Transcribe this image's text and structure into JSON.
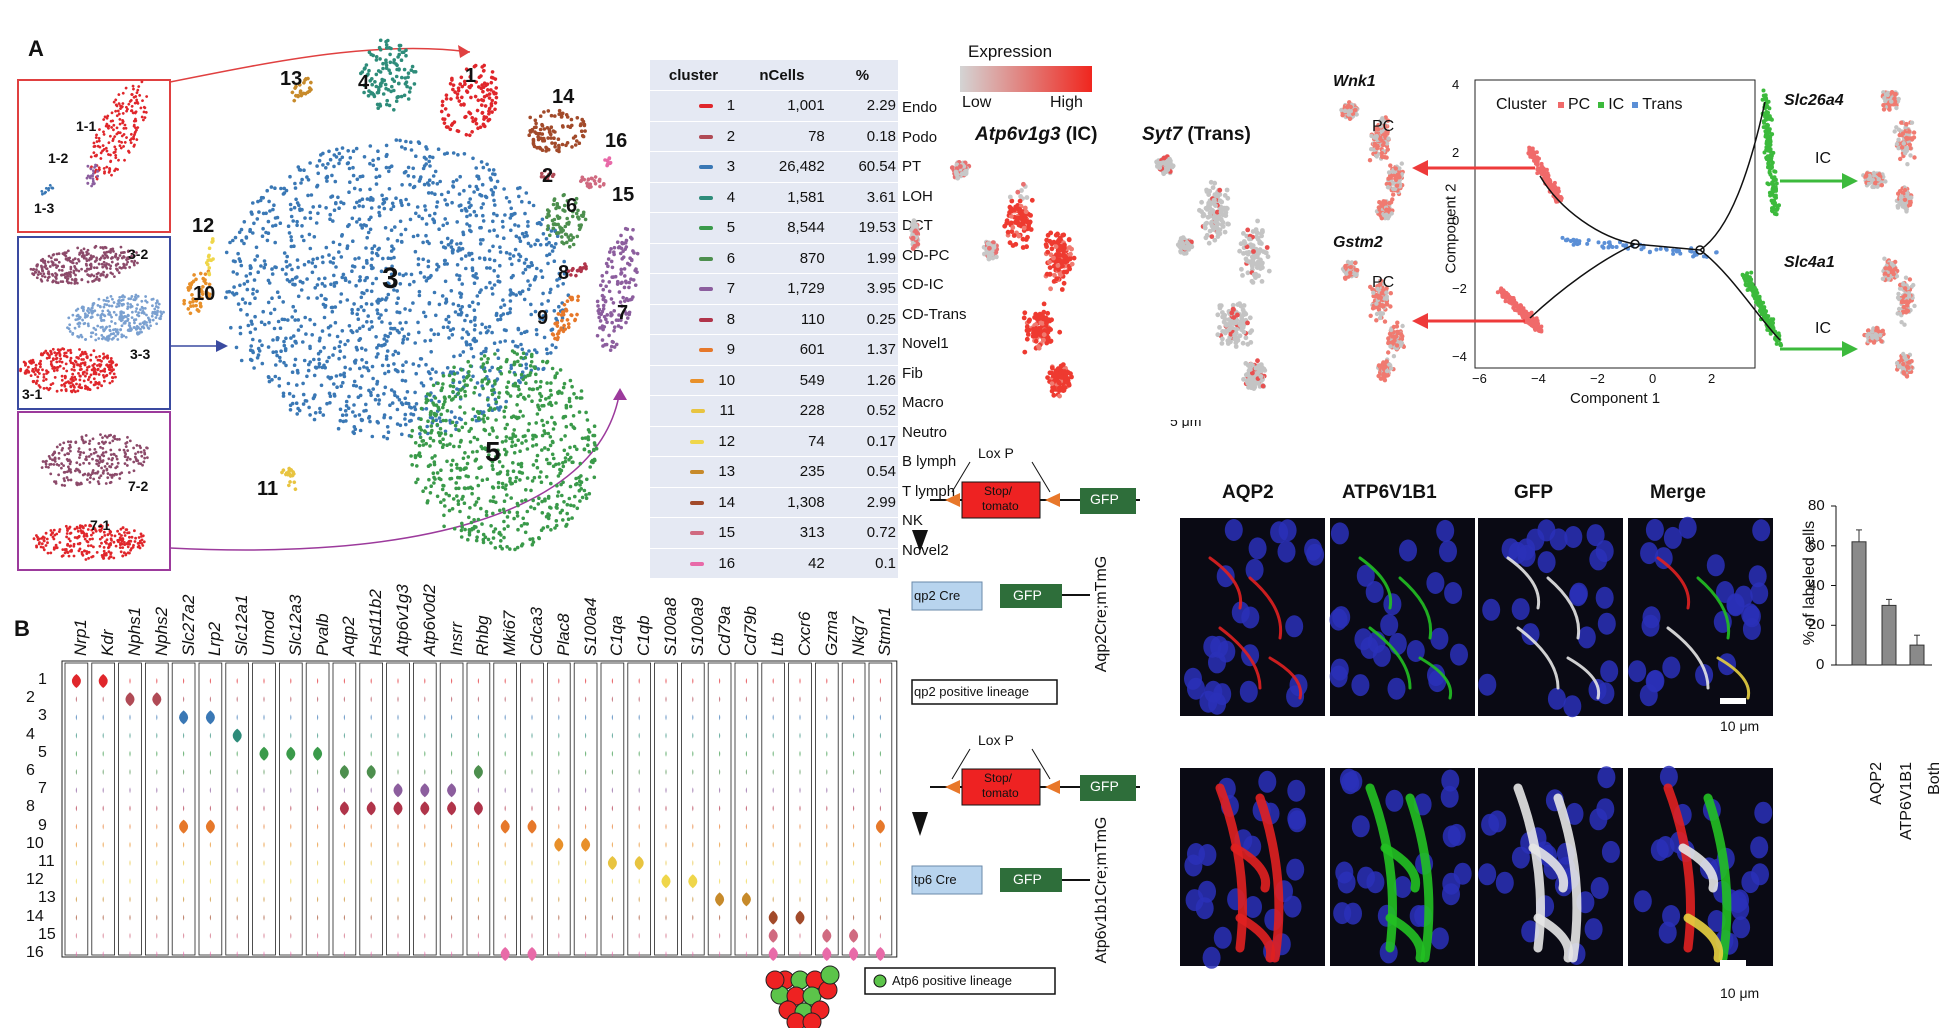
{
  "panels": {
    "a": "A",
    "b": "B"
  },
  "tsne_cluster_numbers": [
    "1",
    "2",
    "3",
    "4",
    "5",
    "6",
    "7",
    "8",
    "9",
    "10",
    "11",
    "12",
    "13",
    "14",
    "15",
    "16"
  ],
  "subcluster_labels": [
    "1-1",
    "1-2",
    "1-3",
    "3-2",
    "3-3",
    "3-1",
    "7-2",
    "7-1"
  ],
  "table": {
    "headers": [
      "cluster",
      "nCells",
      "%"
    ],
    "rows": [
      {
        "cluster": "1",
        "ncells": "1,001",
        "pct": "2.29",
        "type": "Endo",
        "color": "#e0262b"
      },
      {
        "cluster": "2",
        "ncells": "78",
        "pct": "0.18",
        "type": "Podo",
        "color": "#b04a55"
      },
      {
        "cluster": "3",
        "ncells": "26,482",
        "pct": "60.54",
        "type": "PT",
        "color": "#3a78b5"
      },
      {
        "cluster": "4",
        "ncells": "1,581",
        "pct": "3.61",
        "type": "LOH",
        "color": "#2e8c7a"
      },
      {
        "cluster": "5",
        "ncells": "8,544",
        "pct": "19.53",
        "type": "DCT",
        "color": "#3a9a4a"
      },
      {
        "cluster": "6",
        "ncells": "870",
        "pct": "1.99",
        "type": "CD-PC",
        "color": "#4d8f4e"
      },
      {
        "cluster": "7",
        "ncells": "1,729",
        "pct": "3.95",
        "type": "CD-IC",
        "color": "#8c5e9e"
      },
      {
        "cluster": "8",
        "ncells": "110",
        "pct": "0.25",
        "type": "CD-Trans",
        "color": "#b0344a"
      },
      {
        "cluster": "9",
        "ncells": "601",
        "pct": "1.37",
        "type": "Novel1",
        "color": "#e6782a"
      },
      {
        "cluster": "10",
        "ncells": "549",
        "pct": "1.26",
        "type": "Fib",
        "color": "#e8902a"
      },
      {
        "cluster": "11",
        "ncells": "228",
        "pct": "0.52",
        "type": "Macro",
        "color": "#e8c440"
      },
      {
        "cluster": "12",
        "ncells": "74",
        "pct": "0.17",
        "type": "Neutro",
        "color": "#efd64a"
      },
      {
        "cluster": "13",
        "ncells": "235",
        "pct": "0.54",
        "type": "B lymph",
        "color": "#c78a2a"
      },
      {
        "cluster": "14",
        "ncells": "1,308",
        "pct": "2.99",
        "type": "T lymph",
        "color": "#a24a2a"
      },
      {
        "cluster": "15",
        "ncells": "313",
        "pct": "0.72",
        "type": "NK",
        "color": "#d06a80"
      },
      {
        "cluster": "16",
        "ncells": "42",
        "pct": "0.1",
        "type": "Novel2",
        "color": "#e86aa8"
      }
    ]
  },
  "violin": {
    "genes": [
      "Nrp1",
      "Kdr",
      "Nphs1",
      "Nphs2",
      "Slc27a2",
      "Lrp2",
      "Slc12a1",
      "Umod",
      "Slc12a3",
      "Pvalb",
      "Aqp2",
      "Hsd11b2",
      "Atp6v1g3",
      "Atp6v0d2",
      "Insrr",
      "Rhbg",
      "Mki67",
      "Cdca3",
      "Plac8",
      "S100a4",
      "C1qa",
      "C1qb",
      "S100a8",
      "S100a9",
      "Cd79a",
      "Cd79b",
      "Ltb",
      "Cxcr6",
      "Gzma",
      "Nkg7",
      "Stmn1"
    ],
    "rows": [
      "1",
      "2",
      "3",
      "4",
      "5",
      "6",
      "7",
      "8",
      "9",
      "10",
      "11",
      "12",
      "13",
      "14",
      "15",
      "16"
    ]
  },
  "expression": {
    "legend_title": "Expression",
    "low": "Low",
    "high": "High",
    "gene1": "Atp6v1g3",
    "gene1_suffix": " (IC)",
    "gene2": "Syt7",
    "gene2_suffix": " (Trans)"
  },
  "trajectory": {
    "legend_title": "Cluster",
    "legend": [
      {
        "name": "PC",
        "color": "#f06a6a"
      },
      {
        "name": "IC",
        "color": "#3cba3c"
      },
      {
        "name": "Trans",
        "color": "#5b8fd6"
      }
    ],
    "xlabel": "Component 1",
    "ylabel": "Component 2",
    "xticks": [
      "−6",
      "−4",
      "−2",
      "0",
      "2"
    ],
    "yticks": [
      "4",
      "2",
      "0",
      "−2",
      "−4"
    ],
    "genes_left": [
      {
        "gene": "Wnk1",
        "tag": "PC"
      },
      {
        "gene": "Gstm2",
        "tag": "PC"
      }
    ],
    "genes_right": [
      {
        "gene": "Slc26a4",
        "tag": "IC"
      },
      {
        "gene": "Slc4a1",
        "tag": "IC"
      }
    ],
    "scale_fragment": "5 μm"
  },
  "lineage": {
    "loxp": "Lox P",
    "stop": "Stop/",
    "tomato": "tomato",
    "gfp": "GFP",
    "cre1": "qp2 Cre",
    "cre2": "tp6 Cre",
    "lineage1": "qp2 positive lineage",
    "lineage2": "Atp6 positive lineage"
  },
  "imaging": {
    "columns": [
      "AQP2",
      "ATP6V1B1",
      "GFP",
      "Merge"
    ],
    "row_labels": [
      "Aqp2Cre;mTmG",
      "Atp6v1b1Cre;mTmG"
    ],
    "scale": "10 μm"
  },
  "bar_chart": {
    "chart_data": {
      "type": "bar",
      "categories": [
        "AQP2",
        "ATP6V1B1",
        "Both"
      ],
      "values": [
        62,
        30,
        10
      ],
      "errors": [
        6,
        3,
        5
      ],
      "ylabel": "% of labeled cells",
      "ylim": [
        0,
        80
      ],
      "yticks": [
        "0",
        "20",
        "40",
        "60",
        "80"
      ]
    }
  }
}
